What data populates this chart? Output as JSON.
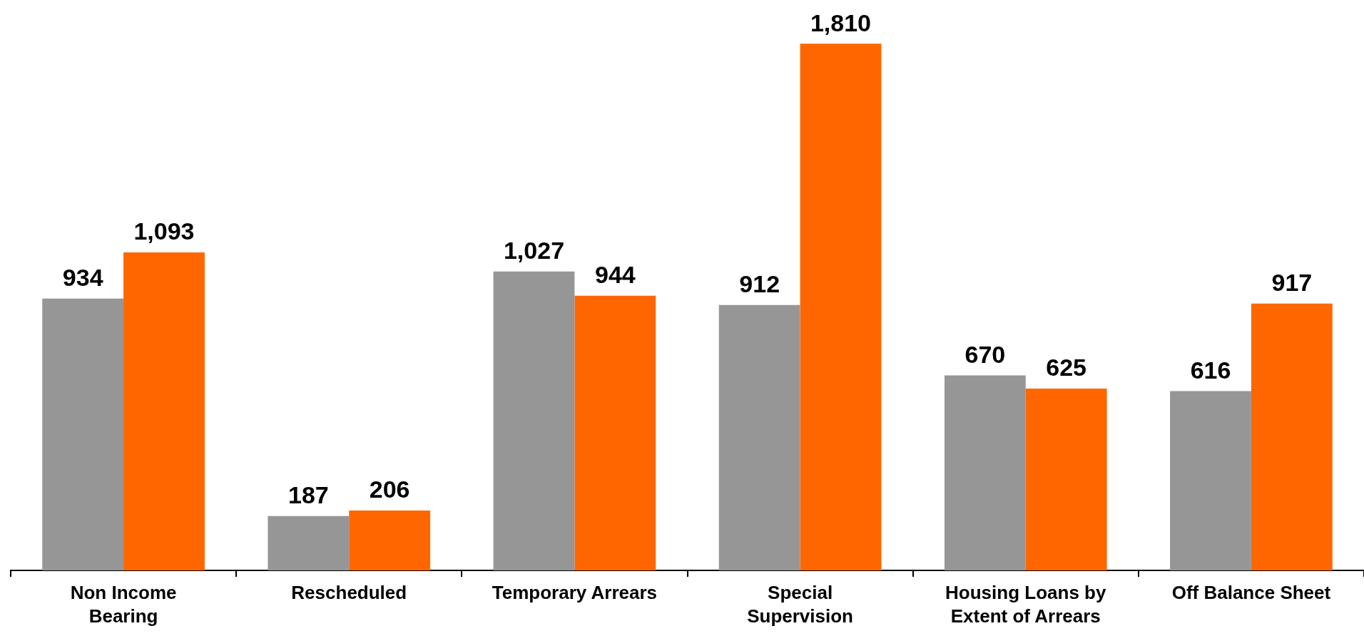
{
  "chart_data": {
    "type": "bar",
    "categories": [
      "Non Income Bearing",
      "Rescheduled",
      "Temporary Arrears",
      "Special Supervision",
      "Housing Loans by Extent of Arrears",
      "Off Balance Sheet"
    ],
    "series": [
      {
        "color": "#969696",
        "values": [
          934,
          187,
          1027,
          912,
          670,
          616
        ],
        "value_labels": [
          "934",
          "187",
          "1,027",
          "912",
          "670",
          "616"
        ]
      },
      {
        "color": "#ff6600",
        "values": [
          1093,
          206,
          944,
          1810,
          625,
          917
        ],
        "value_labels": [
          "1,093",
          "206",
          "944",
          "1,810",
          "625",
          "917"
        ]
      }
    ]
  }
}
